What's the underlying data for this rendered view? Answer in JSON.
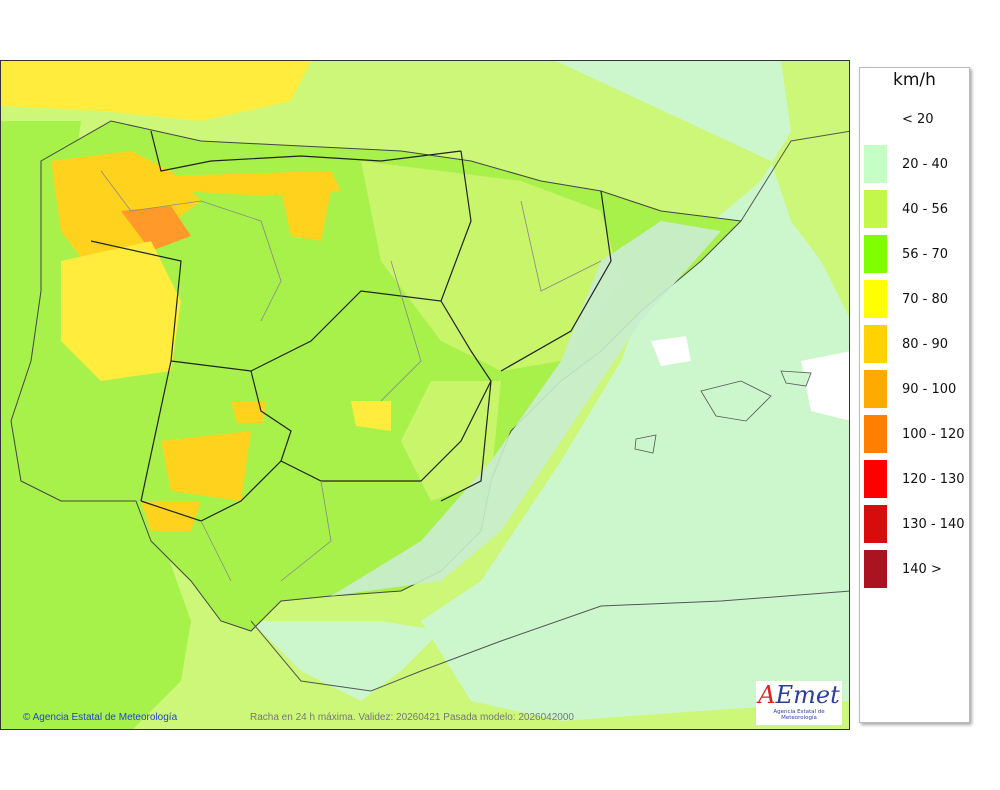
{
  "legend": {
    "unit": "km/h",
    "items": [
      {
        "label": "< 20",
        "color": null
      },
      {
        "label": "20 - 40",
        "color": "#c6ffc6"
      },
      {
        "label": "40 - 56",
        "color": "#c3f74a"
      },
      {
        "label": "56 - 70",
        "color": "#80ff00"
      },
      {
        "label": "70 - 80",
        "color": "#ffff00"
      },
      {
        "label": "80 - 90",
        "color": "#ffd200"
      },
      {
        "label": "90 - 100",
        "color": "#ffaa00"
      },
      {
        "label": "100 - 120",
        "color": "#ff8000"
      },
      {
        "label": "120 - 130",
        "color": "#ff0000"
      },
      {
        "label": "130 - 140",
        "color": "#d70c0c"
      },
      {
        "label": "140 >",
        "color": "#aa1420"
      }
    ]
  },
  "map": {
    "credit": "© Agencia Estatal de Meteorología",
    "caption": "Racha en 24 h máxima. Validez: 20260421 Pasada modelo: 2026042000",
    "logo": {
      "text": "AEmet",
      "subtitle": "Agencia Estatal de Meteorología"
    }
  }
}
